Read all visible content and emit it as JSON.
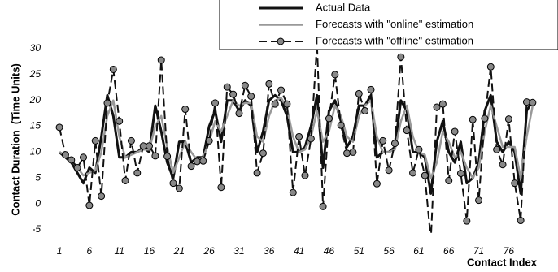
{
  "chart_data": {
    "type": "line",
    "xlabel": "Contact Index",
    "ylabel": "Contact Duration  (Time Units)",
    "x": [
      1,
      2,
      3,
      4,
      5,
      6,
      7,
      8,
      9,
      10,
      11,
      12,
      13,
      14,
      15,
      16,
      17,
      18,
      19,
      20,
      21,
      22,
      23,
      24,
      25,
      26,
      27,
      28,
      29,
      30,
      31,
      32,
      33,
      34,
      35,
      36,
      37,
      38,
      39,
      40,
      41,
      42,
      43,
      44,
      45,
      46,
      47,
      48,
      49,
      50,
      51,
      52,
      53,
      54,
      55,
      56,
      57,
      58,
      59,
      60,
      61,
      62,
      63,
      64,
      65,
      66,
      67,
      68,
      69,
      70,
      71,
      72,
      73,
      74,
      75,
      76,
      77,
      78,
      79,
      80
    ],
    "series": [
      {
        "name": "Actual Data",
        "color": "#111111",
        "style": "solid",
        "values": [
          10,
          9,
          8,
          6,
          4,
          7,
          6,
          13,
          21,
          17,
          9,
          9,
          10,
          10,
          11,
          10,
          19,
          14,
          8,
          5,
          12,
          12,
          8,
          9,
          9,
          15,
          18,
          12,
          20,
          20,
          18,
          20,
          19,
          10,
          14,
          20,
          21,
          20,
          17,
          10,
          10,
          11,
          15,
          21,
          7,
          18,
          20,
          16,
          11,
          13,
          19,
          19,
          21,
          9,
          10,
          10,
          11,
          20,
          18,
          10,
          10,
          9,
          2,
          12,
          16,
          10,
          8,
          12,
          4,
          5,
          8,
          18,
          21,
          12,
          10,
          12,
          10,
          2,
          18,
          20
        ]
      },
      {
        "name": "Forecasts with \"online\" estimation",
        "color": "#999999",
        "style": "solid",
        "values": [
          10,
          9.5,
          8.5,
          7,
          5.5,
          6,
          6.5,
          10,
          17,
          20,
          13,
          9,
          9.5,
          10,
          10.5,
          10.5,
          15,
          17,
          11,
          6,
          9,
          12,
          10,
          8.5,
          9,
          12,
          16,
          14,
          17,
          20,
          19,
          19.5,
          19.5,
          13,
          12,
          17,
          20,
          20.5,
          18.5,
          13,
          10,
          10.5,
          13,
          18,
          12,
          14,
          19,
          17,
          13,
          12,
          17,
          19,
          20,
          13,
          10,
          10,
          10.5,
          16,
          19,
          13,
          10,
          9.5,
          5,
          8,
          14,
          12,
          9,
          10,
          7,
          5,
          7,
          14,
          19,
          15,
          11,
          11,
          11,
          5,
          13,
          19
        ]
      },
      {
        "name": "Forecasts with \"offline\" estimation",
        "color": "#111111",
        "style": "dashed",
        "marker_color": "#888888",
        "values": [
          14.8,
          9.5,
          8.5,
          7,
          9,
          -0.3,
          12.2,
          1.5,
          19.5,
          26,
          16,
          4.5,
          12.2,
          6,
          11.2,
          11.2,
          9.3,
          27.8,
          9.2,
          4,
          3,
          18.3,
          7.3,
          8.2,
          8.3,
          12.2,
          19.5,
          3.2,
          22.6,
          21.2,
          17.5,
          22.9,
          20.8,
          6,
          9.8,
          23.2,
          19.3,
          22,
          19.3,
          2.2,
          13,
          5.5,
          12.6,
          31,
          -0.5,
          16.5,
          25,
          15.2,
          9.8,
          10,
          21.3,
          18,
          22.1,
          3.9,
          12.2,
          6.5,
          11.7,
          28.4,
          14.2,
          6,
          10.5,
          5.5,
          -7,
          18.7,
          19.3,
          4.5,
          14,
          5.9,
          -3.3,
          16.3,
          0.7,
          16.5,
          26.5,
          10.5,
          7.6,
          16.4,
          4,
          -3.2,
          19.7,
          19.6
        ]
      }
    ],
    "xlim": [
      -0.5,
      80.7
    ],
    "xticks": [
      1,
      6,
      11,
      16,
      21,
      26,
      31,
      36,
      41,
      46,
      51,
      56,
      61,
      66,
      71,
      76
    ],
    "ylim": [
      -5,
      30
    ],
    "yticks": [
      -5,
      0,
      5,
      10,
      15,
      20,
      25,
      30
    ],
    "legend": "top-right",
    "grid": false
  }
}
